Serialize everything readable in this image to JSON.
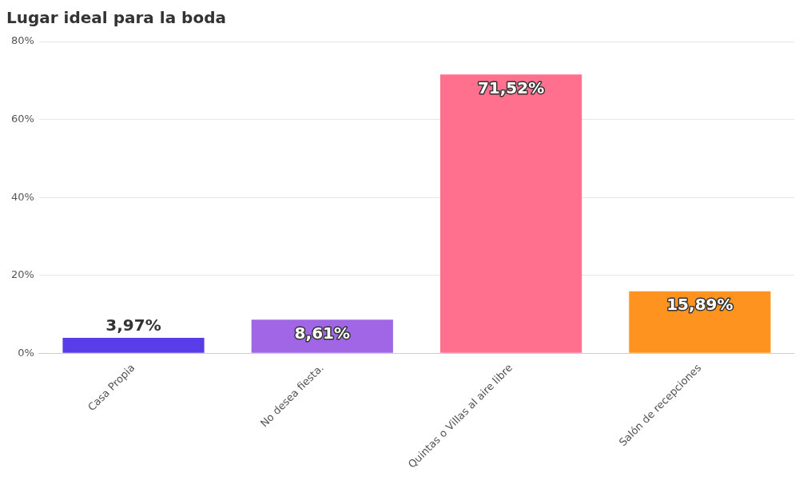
{
  "chart_data": {
    "type": "bar",
    "title": "Lugar ideal para la boda",
    "categories": [
      "Casa Propia",
      "No desea fiesta.",
      "Quintas o Villas al aire libre",
      "Salón de recepciones"
    ],
    "values": [
      3.97,
      8.61,
      71.52,
      15.89
    ],
    "colors": [
      "#583de8",
      "#a066e6",
      "#ff6f8e",
      "#ff9320"
    ],
    "value_labels": [
      "3,97%",
      "8,61%",
      "71,52%",
      "15,89%"
    ],
    "ylim": [
      0,
      80
    ],
    "yticks": [
      {
        "value": 0,
        "label": "0%"
      },
      {
        "value": 20,
        "label": "20%"
      },
      {
        "value": 40,
        "label": "40%"
      },
      {
        "value": 60,
        "label": "60%"
      },
      {
        "value": 80,
        "label": "80%"
      }
    ],
    "grid": "y",
    "legend": false
  }
}
